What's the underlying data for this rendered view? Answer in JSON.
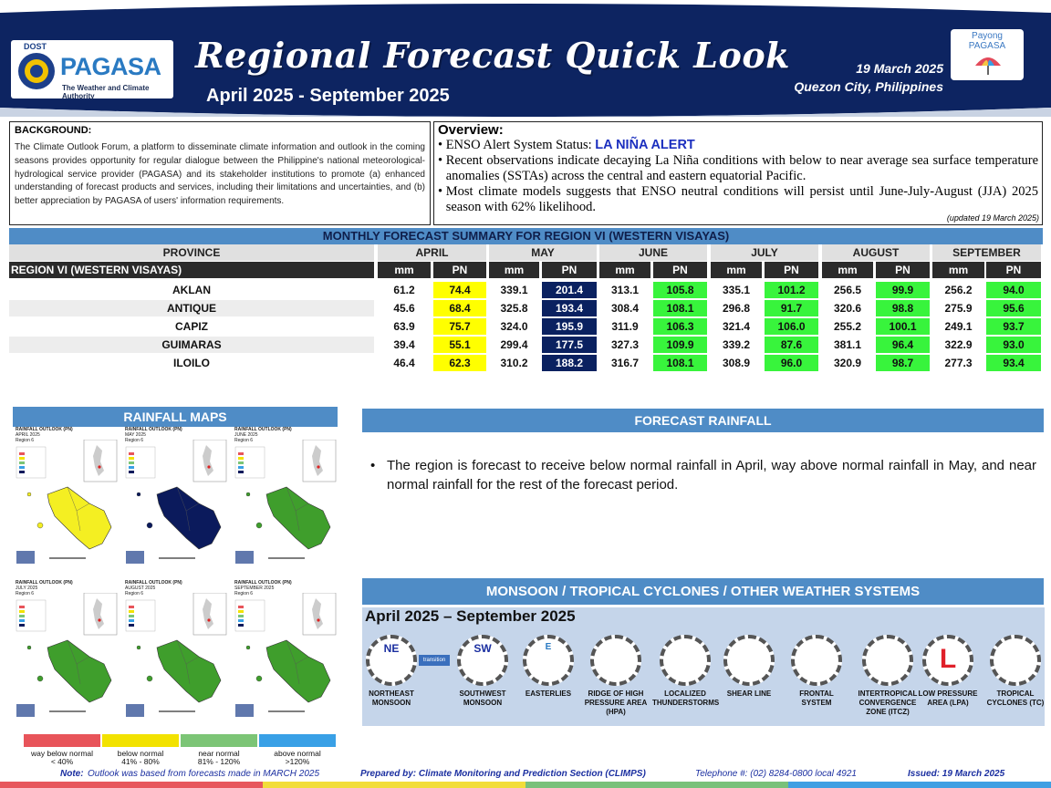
{
  "header": {
    "dost": "DOST",
    "agency": "PAGASA",
    "agency_tagline": "The Weather and Climate Authority",
    "title": "Regional Forecast Quick Look",
    "period": "April 2025 - September 2025",
    "date": "19 March 2025",
    "place": "Quezon City, Philippines",
    "payong_line1": "Payong",
    "payong_line2": "PAGASA"
  },
  "background": {
    "title": "BACKGROUND:",
    "text": "The Climate Outlook Forum, a platform to disseminate climate information and outlook in the coming seasons provides opportunity for regular dialogue between the Philippine's national meteorological-hydrological service provider (PAGASA) and its stakeholder institutions to promote (a) enhanced understanding of forecast products and services, including their limitations and uncertainties, and (b) better appreciation by PAGASA of users' information requirements."
  },
  "overview": {
    "title": "Overview:",
    "enso_prefix": "ENSO Alert System Status: ",
    "enso_status": "LA NIÑA ALERT",
    "bullet2": "Recent observations indicate decaying La Niña conditions with below to near average sea surface temperature anomalies  (SSTAs) across the central and eastern equatorial Pacific.",
    "bullet3": "Most climate models suggests that ENSO neutral conditions will persist until June-July-August (JJA) 2025 season with 62% likelihood.",
    "updated": "(updated 19 March 2025)"
  },
  "table": {
    "title": "MONTHLY FORECAST SUMMARY FOR REGION VI (WESTERN VISAYAS)",
    "province_header": "PROVINCE",
    "region_label": "REGION VI (WESTERN VISAYAS)",
    "months": [
      "APRIL",
      "MAY",
      "JUNE",
      "JULY",
      "AUGUST",
      "SEPTEMBER"
    ],
    "mm_label": "mm",
    "pn_label": "PN",
    "rows": [
      {
        "province": "AKLAN",
        "values": [
          [
            "61.2",
            "74.4"
          ],
          [
            "339.1",
            "201.4"
          ],
          [
            "313.1",
            "105.8"
          ],
          [
            "335.1",
            "101.2"
          ],
          [
            "256.5",
            "99.9"
          ],
          [
            "256.2",
            "94.0"
          ]
        ]
      },
      {
        "province": "ANTIQUE",
        "values": [
          [
            "45.6",
            "68.4"
          ],
          [
            "325.8",
            "193.4"
          ],
          [
            "308.4",
            "108.1"
          ],
          [
            "296.8",
            "91.7"
          ],
          [
            "320.6",
            "98.8"
          ],
          [
            "275.9",
            "95.6"
          ]
        ]
      },
      {
        "province": "CAPIZ",
        "values": [
          [
            "63.9",
            "75.7"
          ],
          [
            "324.0",
            "195.9"
          ],
          [
            "311.9",
            "106.3"
          ],
          [
            "321.4",
            "106.0"
          ],
          [
            "255.2",
            "100.1"
          ],
          [
            "249.1",
            "93.7"
          ]
        ]
      },
      {
        "province": "GUIMARAS",
        "values": [
          [
            "39.4",
            "55.1"
          ],
          [
            "299.4",
            "177.5"
          ],
          [
            "327.3",
            "109.9"
          ],
          [
            "339.2",
            "87.6"
          ],
          [
            "381.1",
            "96.4"
          ],
          [
            "322.9",
            "93.0"
          ]
        ]
      },
      {
        "province": "ILOILO",
        "values": [
          [
            "46.4",
            "62.3"
          ],
          [
            "310.2",
            "188.2"
          ],
          [
            "316.7",
            "108.1"
          ],
          [
            "308.9",
            "96.0"
          ],
          [
            "320.9",
            "98.7"
          ],
          [
            "277.3",
            "93.4"
          ]
        ]
      }
    ],
    "pn_class": [
      "pn-yellow",
      "pn-navy",
      "pn-green",
      "pn-green",
      "pn-green",
      "pn-green"
    ]
  },
  "maps": {
    "title": "RAINFALL MAPS",
    "captions": [
      [
        "RAINFALL OUTLOOK (PN)",
        "APRIL 2025",
        "Region 6"
      ],
      [
        "RAINFALL OUTLOOK (PN)",
        "MAY 2025",
        "Region 6"
      ],
      [
        "RAINFALL OUTLOOK (PN)",
        "JUNE 2025",
        "Region 6"
      ],
      [
        "RAINFALL OUTLOOK (PN)",
        "JULY 2025",
        "Region 6"
      ],
      [
        "RAINFALL OUTLOOK (PN)",
        "AUGUST 2025",
        "Region 6"
      ],
      [
        "RAINFALL OUTLOOK (PN)",
        "SEPTEMBER 2025",
        "Region 6"
      ]
    ],
    "fills": [
      "#f4ef22",
      "#0b1a5c",
      "#3f9e2c",
      "#3f9e2c",
      "#3f9e2c",
      "#3f9e2c"
    ],
    "legend": [
      {
        "line1": "way below normal",
        "line2": "< 40%",
        "color": "#e8545a"
      },
      {
        "line1": "below normal",
        "line2": "41% - 80%",
        "color": "#f2e200"
      },
      {
        "line1": "near normal",
        "line2": "81% - 120%",
        "color": "#7cc576"
      },
      {
        "line1": "above normal",
        "line2": ">120%",
        "color": "#39a0e6"
      }
    ]
  },
  "forecast": {
    "title": "FORECAST RAINFALL",
    "text": "The region is forecast to receive below normal rainfall in April, way above normal rainfall in May, and near normal rainfall for the rest of the forecast period."
  },
  "monsoon": {
    "title": "MONSOON / TROPICAL CYCLONES / OTHER WEATHER SYSTEMS",
    "period": "April 2025 – September 2025",
    "transition": "transition",
    "systems": [
      {
        "label": "NORTHEAST MONSOON",
        "abbr": "NE",
        "icon": "northeast-monsoon-icon"
      },
      {
        "label": "SOUTHWEST MONSOON",
        "abbr": "SW",
        "icon": "southwest-monsoon-icon"
      },
      {
        "label": "EASTERLIES",
        "abbr": "E",
        "icon": "easterlies-icon"
      },
      {
        "label": "RIDGE OF HIGH PRESSURE AREA (HPA)",
        "abbr": "",
        "icon": "ridge-icon"
      },
      {
        "label": "LOCALIZED THUNDERSTORMS",
        "abbr": "",
        "icon": "thunderstorm-icon"
      },
      {
        "label": "SHEAR LINE",
        "abbr": "",
        "icon": "shear-line-icon"
      },
      {
        "label": "FRONTAL SYSTEM",
        "abbr": "",
        "icon": "frontal-system-icon"
      },
      {
        "label": "INTERTROPICAL CONVERGENCE ZONE (ITCZ)",
        "abbr": "",
        "icon": "itcz-icon"
      },
      {
        "label": "LOW PRESSURE AREA (LPA)",
        "abbr": "L",
        "icon": "low-pressure-icon"
      },
      {
        "label": "TROPICAL CYCLONES (TC)",
        "abbr": "",
        "icon": "tropical-cyclone-icon"
      }
    ]
  },
  "footer": {
    "note_label": "Note:",
    "note": " Outlook was based from forecasts made in MARCH 2025",
    "prepared": "Prepared by: Climate Monitoring and Prediction Section (CLIMPS)",
    "telephone": "Telephone #: (02) 8284-0800 local 4921",
    "issued": "Issued: 19 March 2025"
  },
  "colors": {
    "header_navy": "#0d2461",
    "section_blue": "#4f8cc6",
    "below_normal": "#ffff00",
    "way_above_normal": "#0a2160",
    "near_normal": "#38f43c"
  }
}
